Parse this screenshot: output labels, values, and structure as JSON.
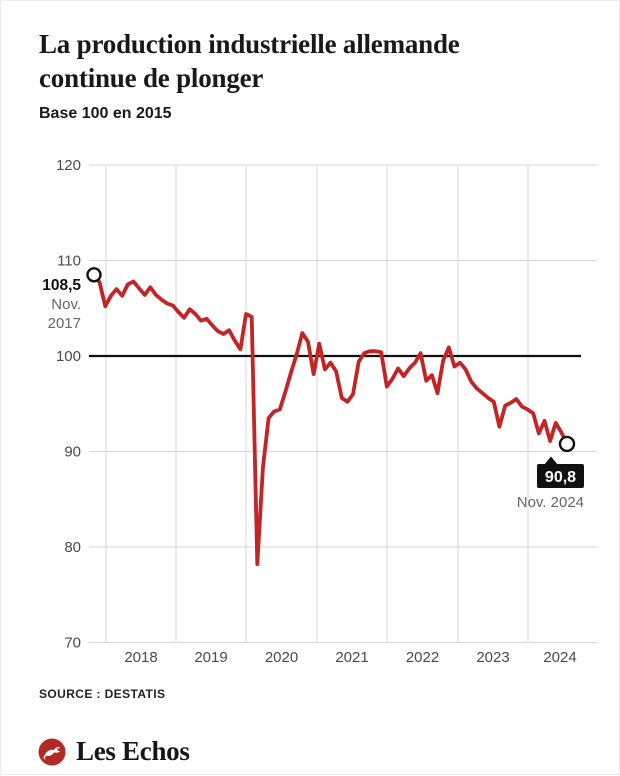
{
  "header": {
    "title": "La production industrielle allemande continue de plonger",
    "subtitle": "Base 100 en 2015"
  },
  "chart_data": {
    "type": "line",
    "title": "La production industrielle allemande continue de plonger",
    "subtitle": "Base 100 en 2015",
    "xlabels": [
      "2018",
      "2019",
      "2020",
      "2021",
      "2022",
      "2023",
      "2024"
    ],
    "yticks": [
      120,
      110,
      100,
      90,
      80,
      70
    ],
    "ylim": [
      70,
      120
    ],
    "baseline_value": 100,
    "grid": true,
    "start_month": "Nov. 2017",
    "end_month": "Nov. 2024",
    "series": [
      {
        "name": "Production industrielle allemande (base 100 en 2015)",
        "frequency": "monthly",
        "values": [
          108.5,
          107.7,
          105.2,
          106.3,
          107.0,
          106.3,
          107.5,
          107.8,
          107.1,
          106.4,
          107.2,
          106.4,
          105.9,
          105.5,
          105.3,
          104.6,
          104.0,
          104.9,
          104.4,
          103.7,
          103.9,
          103.2,
          102.6,
          102.3,
          102.7,
          101.6,
          100.7,
          104.4,
          104.1,
          78.2,
          88.3,
          93.5,
          94.2,
          94.4,
          96.3,
          98.3,
          100.2,
          102.4,
          101.5,
          98.1,
          101.3,
          98.6,
          99.3,
          98.4,
          95.6,
          95.2,
          96.0,
          99.4,
          100.3,
          100.5,
          100.5,
          100.4,
          96.8,
          97.6,
          98.7,
          97.9,
          98.7,
          99.3,
          100.3,
          97.4,
          98.0,
          96.1,
          99.5,
          100.9,
          98.9,
          99.3,
          98.6,
          97.3,
          96.6,
          96.1,
          95.6,
          95.2,
          92.6,
          94.8,
          95.1,
          95.5,
          94.7,
          94.4,
          94.0,
          91.9,
          93.2,
          91.1,
          93.0,
          92.0,
          90.8
        ]
      }
    ],
    "annotations": {
      "start": {
        "value": 108.5,
        "value_label": "108,5",
        "date_line1": "Nov.",
        "date_line2": "2017"
      },
      "end": {
        "value": 90.8,
        "value_label": "90,8",
        "date": "Nov. 2024"
      }
    }
  },
  "footer": {
    "source": "SOURCE : DESTATIS",
    "brand": "Les Echos"
  },
  "colors": {
    "line": "#c32526",
    "baseline": "#111111",
    "grid": "#d7d7d7",
    "text_gray": "#666666",
    "axis_text": "#4a4a4a",
    "badge_bg": "#111111",
    "badge_text": "#ffffff",
    "logo_red": "#b22a23"
  }
}
